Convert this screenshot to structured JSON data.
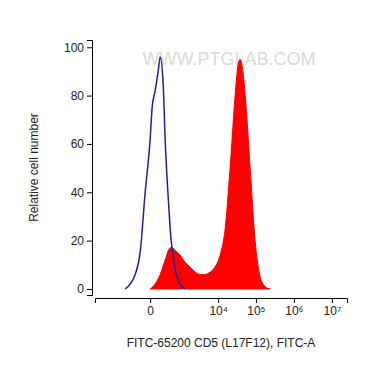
{
  "chart_data": {
    "type": "histogram",
    "x_label": "FITC-65200 CD5 (L17F12), FITC-A",
    "y_label": "Relative cell number",
    "annotations": [
      "WWW.PTGLAB.COM"
    ],
    "log": "x",
    "xlim": [
      -4500,
      25000000
    ],
    "xticks": [
      0,
      {
        "value": 10000,
        "label": "10⁴"
      },
      {
        "value": 100000,
        "label": "10⁵"
      },
      {
        "value": 1000000,
        "label": "10⁶"
      },
      {
        "value": 10000000,
        "label": "10⁷"
      }
    ],
    "ylim": [
      -2.5,
      103
    ],
    "yticks": [
      0,
      20,
      40,
      60,
      80,
      100
    ],
    "series": [
      {
        "type": "line",
        "color": "#1f1fa8",
        "x": [
          -586,
          -390,
          -244,
          -138,
          -58,
          0,
          21,
          58,
          103,
          138,
          198,
          244,
          327,
          390,
          586,
          851,
          1210
        ],
        "values": [
          0,
          2,
          6,
          15,
          40,
          62,
          75,
          82,
          90,
          96,
          85,
          62,
          38,
          25,
          8,
          2,
          0
        ]
      },
      {
        "type": "area",
        "color": "#ff0000",
        "x": [
          0,
          58,
          138,
          244,
          390,
          468,
          586,
          851,
          1210,
          1700,
          2360,
          3250,
          4300,
          6100,
          8150,
          11300,
          15400,
          20800,
          28300,
          34000,
          38300,
          43500,
          52400,
          70500,
          95300,
          129700,
          175000,
          237000
        ],
        "values": [
          0,
          2,
          6,
          12,
          17,
          17,
          16,
          14,
          11,
          9,
          7,
          6,
          6,
          7,
          9,
          14,
          25,
          50,
          80,
          93,
          95,
          92,
          80,
          50,
          20,
          5,
          1,
          0
        ]
      }
    ]
  }
}
